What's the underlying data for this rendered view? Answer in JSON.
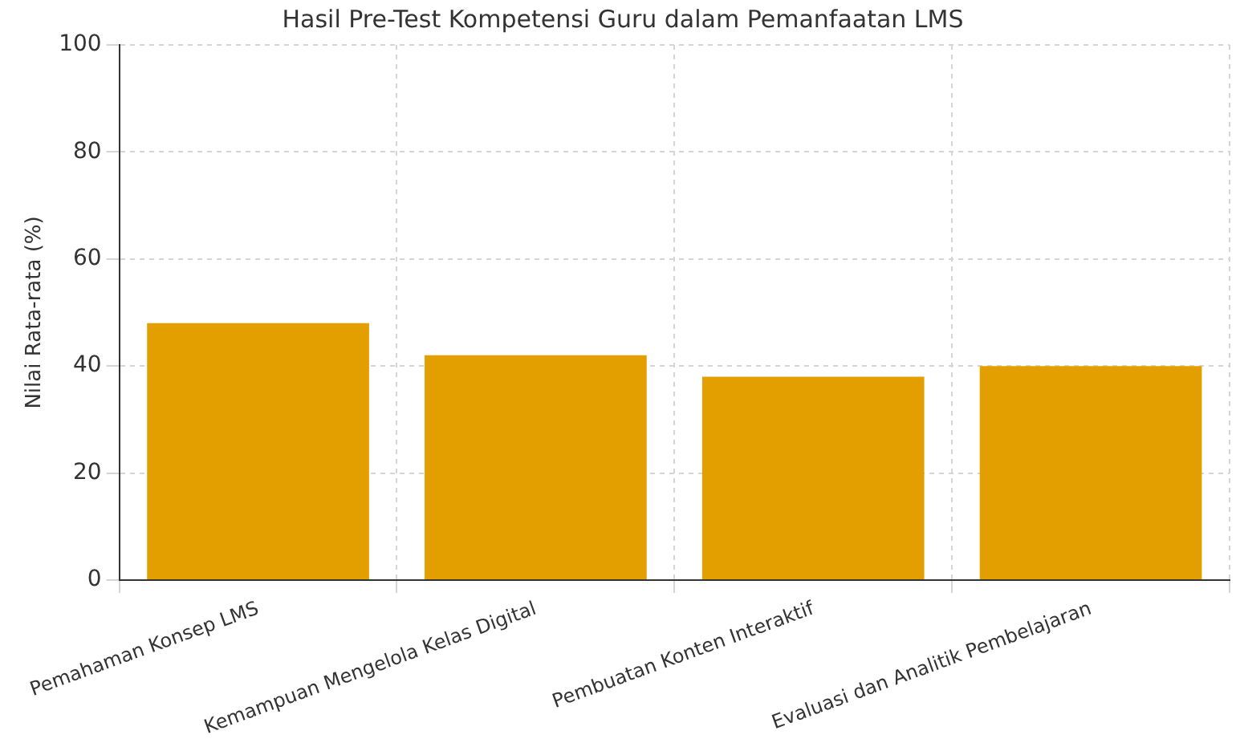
{
  "chart_data": {
    "type": "bar",
    "title": "Hasil Pre-Test Kompetensi Guru dalam Pemanfaatan LMS",
    "ylabel": "Nilai Rata-rata (%)",
    "categories": [
      "Pemahaman Konsep LMS",
      "Kemampuan Mengelola Kelas Digital",
      "Pembuatan Konten Interaktif",
      "Evaluasi dan Analitik Pembelajaran"
    ],
    "values": [
      48,
      42,
      38,
      40
    ],
    "color": "#e39f00",
    "ylim": [
      0,
      100
    ],
    "yticks": [
      0,
      20,
      40,
      60,
      80,
      100
    ],
    "grid": true
  }
}
